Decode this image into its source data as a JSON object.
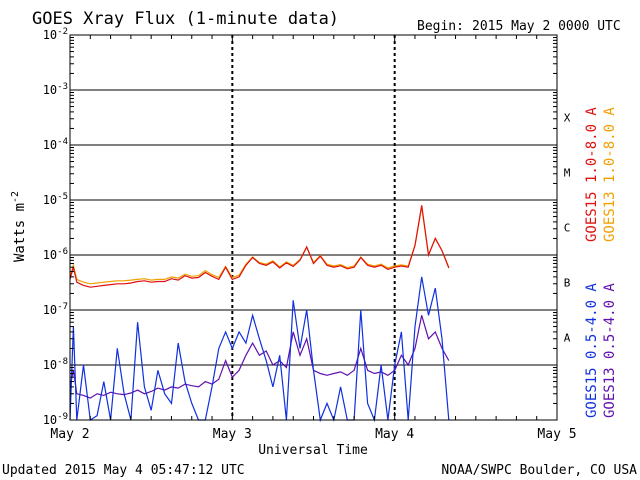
{
  "chart_data": {
    "type": "line",
    "title": "GOES Xray Flux (1-minute data)",
    "begin_label": "Begin:",
    "begin_value": "2015 May 2 0000 UTC",
    "xlabel": "Universal Time",
    "ylabel": "Watts m",
    "ylabel_sup": "-2",
    "x_ticks": [
      "May 2",
      "May 3",
      "May 4",
      "May 5"
    ],
    "xlim_hours": [
      0,
      72
    ],
    "y_scale": "log",
    "ylim": [
      1e-09,
      0.01
    ],
    "y_tick_mantissa": "10",
    "y_tick_exponents": [
      "-9",
      "-8",
      "-7",
      "-6",
      "-5",
      "-4",
      "-3",
      "-2"
    ],
    "flare_classes": [
      {
        "label": "A",
        "lower": 1e-08
      },
      {
        "label": "B",
        "lower": 1e-07
      },
      {
        "label": "C",
        "lower": 1e-06
      },
      {
        "label": "M",
        "lower": 1e-05
      },
      {
        "label": "X",
        "lower": 0.0001
      }
    ],
    "grid": true,
    "legend_position": "right, vertical",
    "series": [
      {
        "name": "GOES15 1.0-8.0 A",
        "color": "#e01010",
        "x": [
          0,
          0.5,
          1,
          2,
          3,
          4,
          5,
          6,
          7,
          8,
          9,
          10,
          11,
          12,
          13,
          14,
          15,
          16,
          17,
          18,
          19,
          20,
          21,
          22,
          23,
          24,
          25,
          26,
          27,
          28,
          29,
          30,
          31,
          32,
          33,
          34,
          35,
          36,
          37,
          38,
          39,
          40,
          41,
          42,
          43,
          44,
          45,
          46,
          47,
          48,
          49,
          50,
          51,
          52,
          53,
          54,
          55,
          56
        ],
        "values": [
          3.6e-07,
          6e-07,
          3.2e-07,
          2.8e-07,
          2.6e-07,
          2.7e-07,
          2.8e-07,
          2.9e-07,
          3e-07,
          3e-07,
          3.1e-07,
          3.3e-07,
          3.4e-07,
          3.2e-07,
          3.3e-07,
          3.3e-07,
          3.7e-07,
          3.5e-07,
          4.2e-07,
          3.8e-07,
          3.9e-07,
          4.8e-07,
          4.1e-07,
          3.6e-07,
          6e-07,
          3.6e-07,
          4e-07,
          6.5e-07,
          9e-07,
          7e-07,
          6.5e-07,
          7.5e-07,
          5.8e-07,
          7.2e-07,
          6.2e-07,
          8e-07,
          1.4e-06,
          7e-07,
          9.5e-07,
          6.5e-07,
          6e-07,
          6.4e-07,
          5.6e-07,
          6e-07,
          9e-07,
          6.5e-07,
          6e-07,
          6.5e-07,
          5.5e-07,
          6e-07,
          6.3e-07,
          6e-07,
          1.5e-06,
          8e-06,
          1e-06,
          2e-06,
          1.2e-06,
          5.8e-07
        ]
      },
      {
        "name": "GOES13 1.0-8.0 A",
        "color": "#f0a000",
        "x": [
          0,
          0.5,
          1,
          2,
          3,
          4,
          5,
          6,
          7,
          8,
          9,
          10,
          11,
          12,
          13,
          14,
          15,
          16,
          17,
          18,
          19,
          20,
          21,
          22,
          23,
          24,
          25,
          26,
          27,
          28,
          29,
          30,
          31,
          32,
          33,
          34,
          35,
          36,
          37,
          38,
          39,
          40,
          41,
          42,
          43,
          44,
          45,
          46,
          47,
          48,
          49,
          50,
          51,
          52,
          53,
          54,
          55,
          56
        ],
        "values": [
          4e-07,
          6.5e-07,
          3.6e-07,
          3.2e-07,
          3e-07,
          3.1e-07,
          3.2e-07,
          3.3e-07,
          3.4e-07,
          3.4e-07,
          3.5e-07,
          3.6e-07,
          3.7e-07,
          3.5e-07,
          3.6e-07,
          3.6e-07,
          4e-07,
          3.8e-07,
          4.5e-07,
          4.1e-07,
          4.2e-07,
          5.2e-07,
          4.4e-07,
          3.9e-07,
          6.2e-07,
          3.9e-07,
          4.3e-07,
          6.8e-07,
          9.2e-07,
          7.3e-07,
          6.8e-07,
          7.8e-07,
          6.1e-07,
          7.5e-07,
          6.5e-07,
          8.3e-07,
          1.4e-06,
          7.3e-07,
          9.8e-07,
          6.8e-07,
          6.3e-07,
          6.7e-07,
          5.9e-07,
          6.3e-07,
          9.2e-07,
          6.8e-07,
          6.3e-07,
          6.8e-07,
          5.8e-07,
          6.3e-07,
          6.6e-07,
          6.3e-07,
          1.5e-06,
          7.5e-06,
          1e-06,
          2e-06,
          1.2e-06,
          6e-07
        ]
      },
      {
        "name": "GOES15 0.5-4.0 A",
        "color": "#1030e0",
        "x": [
          0,
          0.5,
          1,
          2,
          3,
          4,
          5,
          6,
          7,
          8,
          9,
          10,
          11,
          12,
          13,
          14,
          15,
          16,
          17,
          18,
          19,
          20,
          21,
          22,
          23,
          24,
          25,
          26,
          27,
          28,
          29,
          30,
          31,
          32,
          33,
          34,
          35,
          36,
          37,
          38,
          39,
          40,
          41,
          42,
          43,
          44,
          45,
          46,
          47,
          48,
          49,
          50,
          51,
          52,
          53,
          54,
          55,
          56
        ],
        "values": [
          1e-09,
          5e-08,
          1e-09,
          1e-08,
          1e-09,
          1.2e-09,
          5e-09,
          1e-09,
          2e-08,
          3e-09,
          1e-09,
          6e-08,
          4e-09,
          1.5e-09,
          8e-09,
          3e-09,
          2e-09,
          2.5e-08,
          5e-09,
          2e-09,
          1e-09,
          1e-09,
          4e-09,
          2e-08,
          4e-08,
          2e-08,
          4e-08,
          2.5e-08,
          8e-08,
          3e-08,
          1.2e-08,
          4e-09,
          1.5e-08,
          1e-09,
          1.5e-07,
          2e-08,
          1e-07,
          8e-09,
          1e-09,
          2e-09,
          1e-09,
          4e-09,
          1e-09,
          1e-09,
          1e-07,
          2e-09,
          1e-09,
          1e-08,
          1e-09,
          1e-08,
          4e-08,
          1e-09,
          5e-08,
          4e-07,
          8e-08,
          2.5e-07,
          3e-08,
          1e-09
        ]
      },
      {
        "name": "GOES13 0.5-4.0 A",
        "color": "#6010b0",
        "x": [
          0,
          0.5,
          1,
          2,
          3,
          4,
          5,
          6,
          7,
          8,
          9,
          10,
          11,
          12,
          13,
          14,
          15,
          16,
          17,
          18,
          19,
          20,
          21,
          22,
          23,
          24,
          25,
          26,
          27,
          28,
          29,
          30,
          31,
          32,
          33,
          34,
          35,
          36,
          37,
          38,
          39,
          40,
          41,
          42,
          43,
          44,
          45,
          46,
          47,
          48,
          49,
          50,
          51,
          52,
          53,
          54,
          55,
          56
        ],
        "values": [
          4e-09,
          8e-09,
          3e-09,
          2.8e-09,
          2.5e-09,
          3e-09,
          2.8e-09,
          3.2e-09,
          3e-09,
          2.9e-09,
          3.1e-09,
          3.5e-09,
          3e-09,
          3.3e-09,
          3.8e-09,
          3.5e-09,
          4e-09,
          3.8e-09,
          4.5e-09,
          4.2e-09,
          4e-09,
          5e-09,
          4.5e-09,
          5.5e-09,
          1.2e-08,
          6e-09,
          8e-09,
          1.5e-08,
          2.5e-08,
          1.5e-08,
          1.8e-08,
          1e-08,
          1.2e-08,
          9e-09,
          4e-08,
          1.5e-08,
          3e-08,
          8e-09,
          7e-09,
          6.5e-09,
          7e-09,
          7.5e-09,
          6.5e-09,
          8e-09,
          2e-08,
          8e-09,
          7e-09,
          7.5e-09,
          6.5e-09,
          8e-09,
          1.5e-08,
          1e-08,
          2e-08,
          8e-08,
          3e-08,
          4e-08,
          2e-08,
          1.2e-08
        ]
      }
    ]
  },
  "footer": {
    "updated": "Updated 2015 May  4 05:47:12 UTC",
    "source": "NOAA/SWPC Boulder, CO USA"
  }
}
